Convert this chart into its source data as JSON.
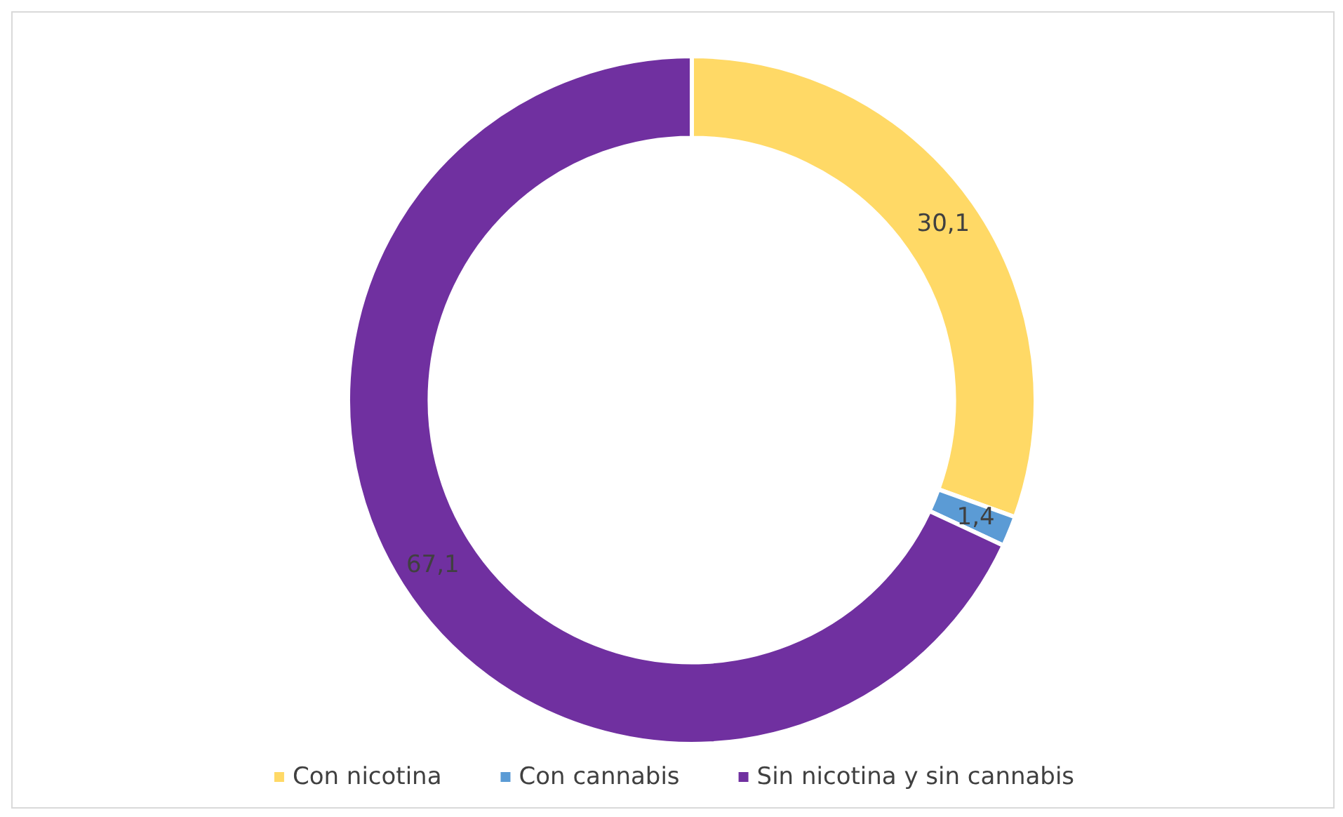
{
  "chart_data": {
    "type": "donut",
    "categories": [
      "Con nicotina",
      "Con cannabis",
      "Sin nicotina y sin cannabis"
    ],
    "values": [
      30.1,
      1.4,
      67.1
    ],
    "colors": [
      "#ffd966",
      "#5b9bd5",
      "#7030a0"
    ],
    "value_labels": [
      "30,1",
      "1,4",
      "67,1"
    ],
    "legend": "bottom"
  }
}
